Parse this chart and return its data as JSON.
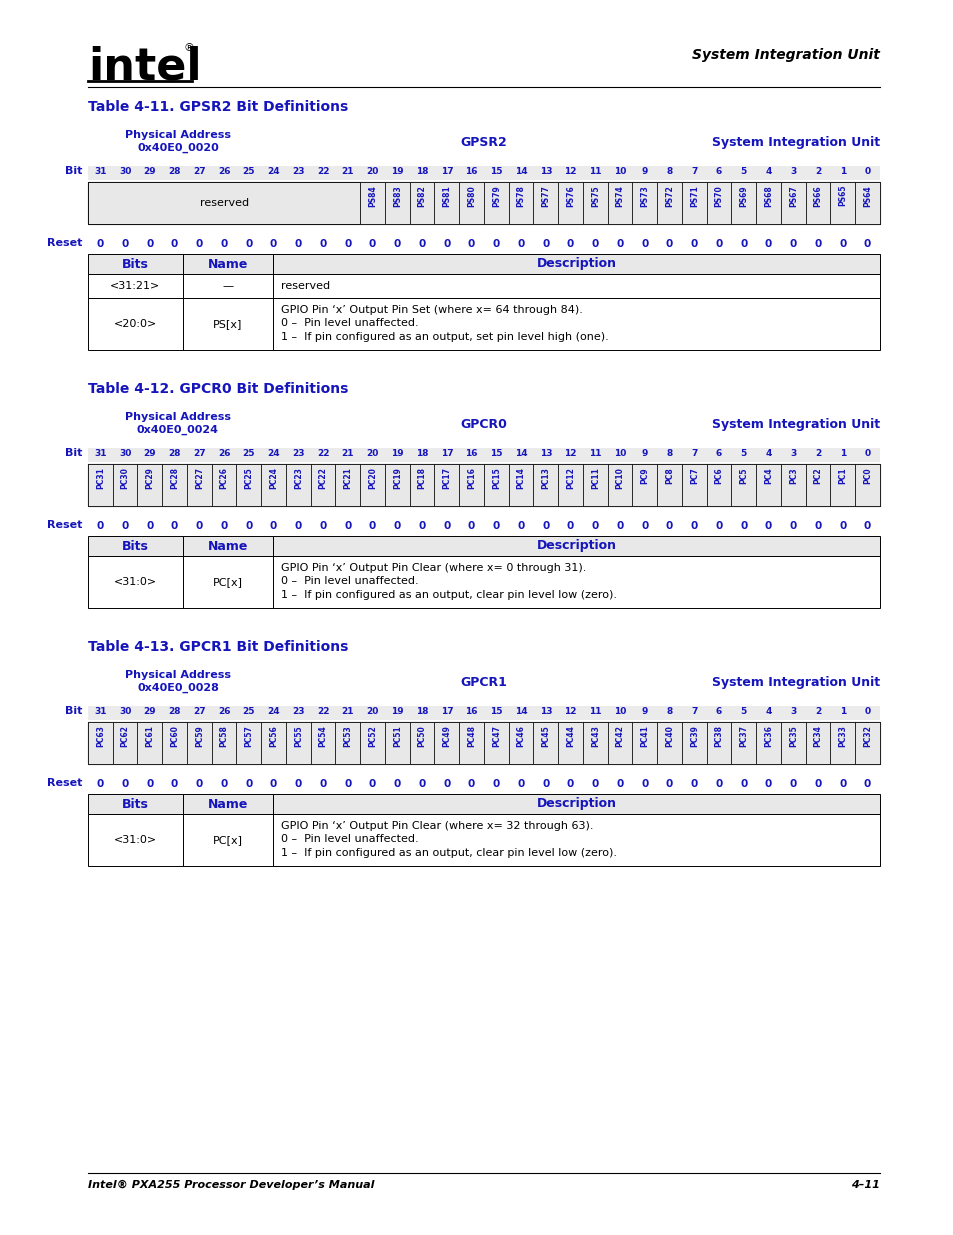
{
  "blue": "#1515BB",
  "black": "#000000",
  "white": "#FFFFFF",
  "light_gray": "#E8E8E8",
  "footer_left": "Intel® PXA255 Processor Developer’s Manual",
  "footer_right": "4–11",
  "header_right": "System Integration Unit",
  "tables": [
    {
      "title": "Table 4-11. GPSR2 Bit Definitions",
      "phys_addr_line1": "Physical Address",
      "phys_addr_line2": "0x40E0_0020",
      "reg_name": "GPSR2",
      "sys_unit": "System Integration Unit",
      "bits_row": [
        "31",
        "30",
        "29",
        "28",
        "27",
        "26",
        "25",
        "24",
        "23",
        "22",
        "21",
        "20",
        "19",
        "18",
        "17",
        "16",
        "15",
        "14",
        "13",
        "12",
        "11",
        "10",
        "9",
        "8",
        "7",
        "6",
        "5",
        "4",
        "3",
        "2",
        "1",
        "0"
      ],
      "reserved_span": 11,
      "signal_labels": [
        "PS84",
        "PS83",
        "PS82",
        "PS81",
        "PS80",
        "PS79",
        "PS78",
        "PS77",
        "PS76",
        "PS75",
        "PS74",
        "PS73",
        "PS72",
        "PS71",
        "PS70",
        "PS69",
        "PS68",
        "PS67",
        "PS66",
        "PS65",
        "PS64"
      ],
      "reset_vals": [
        "0",
        "0",
        "0",
        "0",
        "0",
        "0",
        "0",
        "0",
        "0",
        "0",
        "0",
        "0",
        "0",
        "0",
        "0",
        "0",
        "0",
        "0",
        "0",
        "0",
        "0",
        "0",
        "0",
        "0",
        "0",
        "0",
        "0",
        "0",
        "0",
        "0",
        "0",
        "0"
      ],
      "desc_rows": [
        {
          "bits": "<31:21>",
          "name": "—",
          "desc": [
            "reserved"
          ]
        },
        {
          "bits": "<20:0>",
          "name": "PS[x]",
          "desc": [
            "GPIO Pin ‘x’ Output Pin Set (where x= 64 through 84).",
            "0 –  Pin level unaffected.",
            "1 –  If pin configured as an output, set pin level high (one)."
          ]
        }
      ]
    },
    {
      "title": "Table 4-12. GPCR0 Bit Definitions",
      "phys_addr_line1": "Physical Address",
      "phys_addr_line2": "0x40E0_0024",
      "reg_name": "GPCR0",
      "sys_unit": "System Integration Unit",
      "bits_row": [
        "31",
        "30",
        "29",
        "28",
        "27",
        "26",
        "25",
        "24",
        "23",
        "22",
        "21",
        "20",
        "19",
        "18",
        "17",
        "16",
        "15",
        "14",
        "13",
        "12",
        "11",
        "10",
        "9",
        "8",
        "7",
        "6",
        "5",
        "4",
        "3",
        "2",
        "1",
        "0"
      ],
      "reserved_span": 0,
      "signal_labels": [
        "PC31",
        "PC30",
        "PC29",
        "PC28",
        "PC27",
        "PC26",
        "PC25",
        "PC24",
        "PC23",
        "PC22",
        "PC21",
        "PC20",
        "PC19",
        "PC18",
        "PC17",
        "PC16",
        "PC15",
        "PC14",
        "PC13",
        "PC12",
        "PC11",
        "PC10",
        "PC9",
        "PC8",
        "PC7",
        "PC6",
        "PC5",
        "PC4",
        "PC3",
        "PC2",
        "PC1",
        "PC0"
      ],
      "reset_vals": [
        "0",
        "0",
        "0",
        "0",
        "0",
        "0",
        "0",
        "0",
        "0",
        "0",
        "0",
        "0",
        "0",
        "0",
        "0",
        "0",
        "0",
        "0",
        "0",
        "0",
        "0",
        "0",
        "0",
        "0",
        "0",
        "0",
        "0",
        "0",
        "0",
        "0",
        "0",
        "0"
      ],
      "desc_rows": [
        {
          "bits": "<31:0>",
          "name": "PC[x]",
          "desc": [
            "GPIO Pin ‘x’ Output Pin Clear (where x= 0 through 31).",
            "0 –  Pin level unaffected.",
            "1 –  If pin configured as an output, clear pin level low (zero)."
          ]
        }
      ]
    },
    {
      "title": "Table 4-13. GPCR1 Bit Definitions",
      "phys_addr_line1": "Physical Address",
      "phys_addr_line2": "0x40E0_0028",
      "reg_name": "GPCR1",
      "sys_unit": "System Integration Unit",
      "bits_row": [
        "31",
        "30",
        "29",
        "28",
        "27",
        "26",
        "25",
        "24",
        "23",
        "22",
        "21",
        "20",
        "19",
        "18",
        "17",
        "16",
        "15",
        "14",
        "13",
        "12",
        "11",
        "10",
        "9",
        "8",
        "7",
        "6",
        "5",
        "4",
        "3",
        "2",
        "1",
        "0"
      ],
      "reserved_span": 0,
      "signal_labels": [
        "PC63",
        "PC62",
        "PC61",
        "PC60",
        "PC59",
        "PC58",
        "PC57",
        "PC56",
        "PC55",
        "PC54",
        "PC53",
        "PC52",
        "PC51",
        "PC50",
        "PC49",
        "PC48",
        "PC47",
        "PC46",
        "PC45",
        "PC44",
        "PC43",
        "PC42",
        "PC41",
        "PC40",
        "PC39",
        "PC38",
        "PC37",
        "PC36",
        "PC35",
        "PC34",
        "PC33",
        "PC32"
      ],
      "reset_vals": [
        "0",
        "0",
        "0",
        "0",
        "0",
        "0",
        "0",
        "0",
        "0",
        "0",
        "0",
        "0",
        "0",
        "0",
        "0",
        "0",
        "0",
        "0",
        "0",
        "0",
        "0",
        "0",
        "0",
        "0",
        "0",
        "0",
        "0",
        "0",
        "0",
        "0",
        "0",
        "0"
      ],
      "desc_rows": [
        {
          "bits": "<31:0>",
          "name": "PC[x]",
          "desc": [
            "GPIO Pin ‘x’ Output Pin Clear (where x= 32 through 63).",
            "0 –  Pin level unaffected.",
            "1 –  If pin configured as an output, clear pin level low (zero)."
          ]
        }
      ]
    }
  ]
}
